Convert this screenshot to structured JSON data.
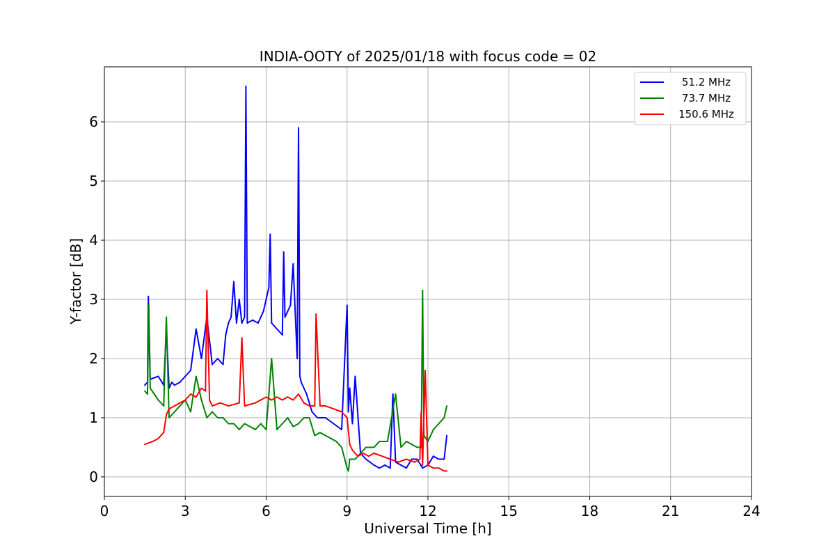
{
  "chart_data": {
    "type": "line",
    "title": "INDIA-OOTY of 2025/01/18 with focus code = 02",
    "xlabel": "Universal Time [h]",
    "ylabel": "Y-factor [dB]",
    "xlim": [
      0,
      24
    ],
    "ylim": [
      -0.33,
      6.93
    ],
    "xticks": [
      "0",
      "3",
      "6",
      "9",
      "12",
      "15",
      "18",
      "21",
      "24"
    ],
    "yticks": [
      "0",
      "1",
      "2",
      "3",
      "4",
      "5",
      "6"
    ],
    "grid": true,
    "legend_position": "top-right",
    "series": [
      {
        "name": "51.2 MHz",
        "color": "#0000ff",
        "x": [
          1.5,
          1.6,
          1.63,
          1.7,
          2.0,
          2.2,
          2.3,
          2.4,
          2.5,
          2.6,
          2.8,
          3.0,
          3.2,
          3.4,
          3.6,
          3.8,
          4.0,
          4.2,
          4.4,
          4.5,
          4.6,
          4.7,
          4.8,
          4.9,
          5.0,
          5.1,
          5.2,
          5.25,
          5.3,
          5.5,
          5.7,
          5.9,
          6.1,
          6.15,
          6.2,
          6.4,
          6.6,
          6.65,
          6.7,
          6.9,
          7.0,
          7.15,
          7.2,
          7.25,
          7.3,
          7.5,
          7.7,
          7.9,
          8.2,
          8.5,
          8.8,
          9.0,
          9.05,
          9.1,
          9.2,
          9.3,
          9.5,
          9.7,
          10.0,
          10.2,
          10.4,
          10.6,
          10.7,
          10.8,
          11.0,
          11.2,
          11.4,
          11.6,
          11.8,
          12.0,
          12.2,
          12.4,
          12.6,
          12.7
        ],
        "y": [
          1.55,
          1.6,
          3.05,
          1.65,
          1.7,
          1.55,
          2.5,
          1.5,
          1.6,
          1.55,
          1.6,
          1.7,
          1.8,
          2.5,
          2.0,
          2.7,
          1.9,
          2.0,
          1.9,
          2.4,
          2.6,
          2.7,
          3.3,
          2.6,
          3.0,
          2.6,
          2.7,
          6.6,
          2.6,
          2.65,
          2.6,
          2.8,
          3.2,
          4.1,
          2.6,
          2.5,
          2.4,
          3.8,
          2.7,
          2.9,
          3.6,
          2.0,
          5.9,
          1.7,
          1.6,
          1.4,
          1.1,
          1.0,
          1.0,
          0.9,
          0.8,
          2.9,
          1.1,
          1.5,
          0.9,
          1.7,
          0.4,
          0.3,
          0.2,
          0.15,
          0.2,
          0.15,
          1.4,
          0.25,
          0.2,
          0.15,
          0.3,
          0.3,
          0.15,
          0.2,
          0.35,
          0.3,
          0.3,
          0.7
        ]
      },
      {
        "name": "73.7 MHz",
        "color": "#008000",
        "x": [
          1.5,
          1.6,
          1.65,
          1.7,
          2.0,
          2.2,
          2.3,
          2.4,
          2.6,
          2.8,
          3.0,
          3.2,
          3.4,
          3.6,
          3.8,
          4.0,
          4.2,
          4.4,
          4.6,
          4.8,
          5.0,
          5.2,
          5.4,
          5.6,
          5.8,
          6.0,
          6.2,
          6.4,
          6.6,
          6.8,
          7.0,
          7.2,
          7.4,
          7.6,
          7.8,
          8.0,
          8.2,
          8.4,
          8.6,
          8.8,
          9.0,
          9.05,
          9.1,
          9.3,
          9.5,
          9.7,
          10.0,
          10.2,
          10.5,
          10.8,
          11.0,
          11.2,
          11.4,
          11.6,
          11.75,
          11.8,
          11.85,
          12.0,
          12.2,
          12.4,
          12.6,
          12.7
        ],
        "y": [
          1.45,
          1.4,
          2.9,
          1.5,
          1.3,
          1.2,
          2.7,
          1.0,
          1.1,
          1.2,
          1.3,
          1.1,
          1.7,
          1.3,
          1.0,
          1.1,
          1.0,
          1.0,
          0.9,
          0.9,
          0.8,
          0.9,
          0.85,
          0.8,
          0.9,
          0.8,
          2.0,
          0.8,
          0.9,
          1.0,
          0.85,
          0.9,
          1.0,
          1.0,
          0.7,
          0.75,
          0.7,
          0.65,
          0.6,
          0.5,
          0.15,
          0.1,
          0.3,
          0.3,
          0.4,
          0.5,
          0.5,
          0.6,
          0.6,
          1.4,
          0.5,
          0.6,
          0.55,
          0.5,
          0.5,
          3.15,
          0.7,
          0.6,
          0.8,
          0.9,
          1.0,
          1.2
        ]
      },
      {
        "name": "150.6 MHz",
        "color": "#ff0000",
        "x": [
          1.5,
          1.8,
          2.0,
          2.2,
          2.3,
          2.4,
          2.6,
          2.8,
          3.0,
          3.2,
          3.4,
          3.6,
          3.75,
          3.8,
          3.9,
          4.0,
          4.3,
          4.6,
          5.0,
          5.1,
          5.2,
          5.6,
          5.8,
          6.0,
          6.2,
          6.4,
          6.6,
          6.8,
          7.0,
          7.2,
          7.4,
          7.6,
          7.8,
          7.85,
          8.0,
          8.2,
          8.5,
          8.8,
          9.0,
          9.1,
          9.2,
          9.4,
          9.6,
          9.8,
          10.0,
          10.3,
          10.6,
          10.9,
          11.2,
          11.5,
          11.7,
          11.75,
          11.8,
          11.9,
          12.0,
          12.2,
          12.4,
          12.6,
          12.7
        ],
        "y": [
          0.55,
          0.6,
          0.65,
          0.75,
          1.05,
          1.15,
          1.2,
          1.25,
          1.3,
          1.4,
          1.35,
          1.5,
          1.45,
          3.15,
          1.3,
          1.2,
          1.25,
          1.2,
          1.25,
          2.35,
          1.2,
          1.25,
          1.3,
          1.35,
          1.3,
          1.35,
          1.3,
          1.35,
          1.3,
          1.4,
          1.25,
          1.2,
          1.2,
          2.75,
          1.2,
          1.2,
          1.15,
          1.1,
          1.0,
          0.55,
          0.45,
          0.35,
          0.4,
          0.35,
          0.4,
          0.35,
          0.3,
          0.25,
          0.3,
          0.25,
          0.3,
          1.1,
          0.2,
          1.8,
          0.2,
          0.15,
          0.15,
          0.1,
          0.1
        ]
      }
    ]
  }
}
